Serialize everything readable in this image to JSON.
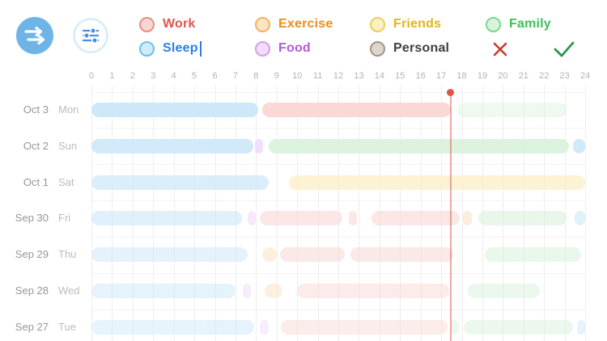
{
  "toolbar": {
    "logo_icon": "timelines-logo-icon",
    "filter_icon": "filters-icon"
  },
  "legend": {
    "editing": {
      "category": "Sleep",
      "cancel_icon": "x-icon",
      "confirm_icon": "check-icon",
      "cancel_color": "#c93a2e",
      "confirm_color": "#27964d"
    },
    "categories": [
      {
        "label": "Work",
        "text_color": "#e2544a",
        "fill": "#f9d6d3",
        "border": "#ee8c83",
        "editing": false
      },
      {
        "label": "Exercise",
        "text_color": "#ee8d20",
        "fill": "#fbe5c2",
        "border": "#f2b35e",
        "editing": false
      },
      {
        "label": "Friends",
        "text_color": "#e0b51e",
        "fill": "#fbf0c4",
        "border": "#e9cf5e",
        "editing": false
      },
      {
        "label": "Family",
        "text_color": "#3fc05a",
        "fill": "#d9f3dc",
        "border": "#7bd88b",
        "editing": false
      },
      {
        "label": "Sleep",
        "text_color": "#2d7de7",
        "fill": "#d2ebfa",
        "border": "#66c0f1",
        "editing": true
      },
      {
        "label": "Food",
        "text_color": "#b25ad8",
        "fill": "#f0dcf8",
        "border": "#d0a0e9",
        "editing": false
      },
      {
        "label": "Personal",
        "text_color": "#433d38",
        "fill": "#ded6cc",
        "border": "#a1958a",
        "editing": false
      }
    ]
  },
  "chart_data": {
    "type": "timeline",
    "x_axis": {
      "min": 0,
      "max": 24,
      "ticks": [
        "0",
        "1",
        "2",
        "3",
        "4",
        "5",
        "6",
        "7",
        "8",
        "9",
        "10",
        "11",
        "12",
        "13",
        "14",
        "15",
        "16",
        "17",
        "18",
        "19",
        "20",
        "21",
        "22",
        "23",
        "24"
      ]
    },
    "now_marker": {
      "hour": 17.45,
      "color": "#e1534a"
    },
    "category_colors": {
      "Sleep": "#cde8f9",
      "Work": "#f9d8d5",
      "Family": "#d9f2dc",
      "Friends": "#fbefc5",
      "Exercise": "#fae4c3",
      "Food": "#efdcf8",
      "Personal": "#ded6cc"
    },
    "rows": [
      {
        "date": "Oct 3",
        "day": "Mon",
        "opacity": 1,
        "segments": [
          {
            "category": "Sleep",
            "start": 0,
            "end": 8.1
          },
          {
            "category": "Work",
            "start": 8.3,
            "end": 17.45
          },
          {
            "category": "Family",
            "start": 17.8,
            "end": 23.1,
            "faded": true
          }
        ]
      },
      {
        "date": "Oct 2",
        "day": "Sun",
        "opacity": 0.9,
        "segments": [
          {
            "category": "Sleep",
            "start": 0,
            "end": 7.85
          },
          {
            "category": "Food",
            "start": 7.95,
            "end": 8.35
          },
          {
            "category": "Family",
            "start": 8.6,
            "end": 23.2
          },
          {
            "category": "Sleep",
            "start": 23.4,
            "end": 24
          }
        ]
      },
      {
        "date": "Oct 1",
        "day": "Sat",
        "opacity": 0.75,
        "segments": [
          {
            "category": "Sleep",
            "start": 0,
            "end": 8.6
          },
          {
            "category": "Friends",
            "start": 9.6,
            "end": 24
          }
        ]
      },
      {
        "date": "Sep 30",
        "day": "Fri",
        "opacity": 0.6,
        "segments": [
          {
            "category": "Sleep",
            "start": 0,
            "end": 7.3
          },
          {
            "category": "Food",
            "start": 7.6,
            "end": 8.0
          },
          {
            "category": "Work",
            "start": 8.2,
            "end": 12.2
          },
          {
            "category": "Work",
            "start": 12.5,
            "end": 12.9
          },
          {
            "category": "Work",
            "start": 13.6,
            "end": 17.9
          },
          {
            "category": "Exercise",
            "start": 18.05,
            "end": 18.5
          },
          {
            "category": "Family",
            "start": 18.8,
            "end": 23.1
          },
          {
            "category": "Sleep",
            "start": 23.5,
            "end": 24
          }
        ]
      },
      {
        "date": "Sep 29",
        "day": "Thu",
        "opacity": 0.55,
        "segments": [
          {
            "category": "Sleep",
            "start": 0,
            "end": 7.6
          },
          {
            "category": "Exercise",
            "start": 8.3,
            "end": 9.0
          },
          {
            "category": "Work",
            "start": 9.15,
            "end": 12.3
          },
          {
            "category": "Work",
            "start": 12.6,
            "end": 17.6
          },
          {
            "category": "Family",
            "start": 19.1,
            "end": 23.8
          }
        ]
      },
      {
        "date": "Sep 28",
        "day": "Wed",
        "opacity": 0.5,
        "segments": [
          {
            "category": "Sleep",
            "start": 0,
            "end": 7.0
          },
          {
            "category": "Food",
            "start": 7.35,
            "end": 7.75
          },
          {
            "category": "Exercise",
            "start": 8.4,
            "end": 9.3
          },
          {
            "category": "Work",
            "start": 10.0,
            "end": 17.4
          },
          {
            "category": "Family",
            "start": 18.3,
            "end": 21.8
          }
        ]
      },
      {
        "date": "Sep 27",
        "day": "Tue",
        "opacity": 0.48,
        "segments": [
          {
            "category": "Sleep",
            "start": 0,
            "end": 7.9
          },
          {
            "category": "Food",
            "start": 8.2,
            "end": 8.6
          },
          {
            "category": "Work",
            "start": 9.2,
            "end": 17.3
          },
          {
            "category": "Family",
            "start": 17.45,
            "end": 17.85
          },
          {
            "category": "Family",
            "start": 18.1,
            "end": 23.4
          },
          {
            "category": "Sleep",
            "start": 23.6,
            "end": 24
          }
        ]
      }
    ]
  }
}
